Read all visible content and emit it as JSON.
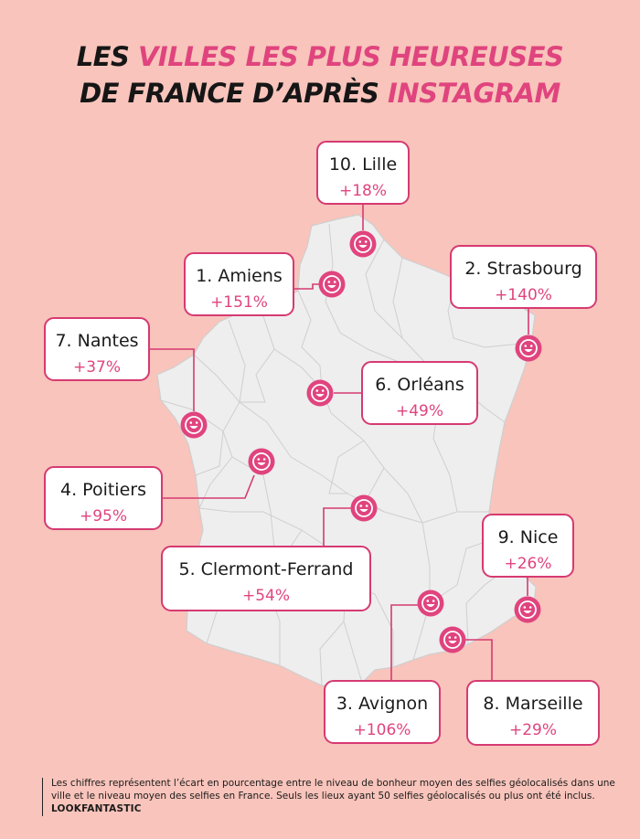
{
  "title": {
    "line1_black": "LES ",
    "line1_pink": "VILLES LES PLUS HEUREUSES",
    "line2_black": "DE FRANCE D’APRÈS ",
    "line2_pink": "INSTAGRAM"
  },
  "cities": [
    {
      "id": "lille",
      "name": "10. Lille",
      "value": "+18%"
    },
    {
      "id": "amiens",
      "name": "1. Amiens",
      "value": "+151%"
    },
    {
      "id": "strasbourg",
      "name": "2. Strasbourg",
      "value": "+140%"
    },
    {
      "id": "nantes",
      "name": "7. Nantes",
      "value": "+37%"
    },
    {
      "id": "orleans",
      "name": "6. Orléans",
      "value": "+49%"
    },
    {
      "id": "poitiers",
      "name": "4. Poitiers",
      "value": "+95%"
    },
    {
      "id": "clermont",
      "name": "5. Clermont-Ferrand",
      "value": "+54%"
    },
    {
      "id": "nice",
      "name": "9. Nice",
      "value": "+26%"
    },
    {
      "id": "avignon",
      "name": "3. Avignon",
      "value": "+106%"
    },
    {
      "id": "marseille",
      "name": "8. Marseille",
      "value": "+29%"
    }
  ],
  "footnote": {
    "text": "Les chiffres représentent l’écart en pourcentage entre le niveau de bonheur moyen des selfies géolocalisés dans une ville et le niveau moyen des selfies en France. Seuls les lieux ayant 50 selfies géolocalisés ou plus ont été inclus.",
    "brand": "LOOKFANTASTIC"
  },
  "colors": {
    "background": "#f8c4bb",
    "accent": "#e0447e",
    "map_fill": "#eeeeee",
    "marker": "#e0447e",
    "icon": "smiley-face-icon"
  }
}
